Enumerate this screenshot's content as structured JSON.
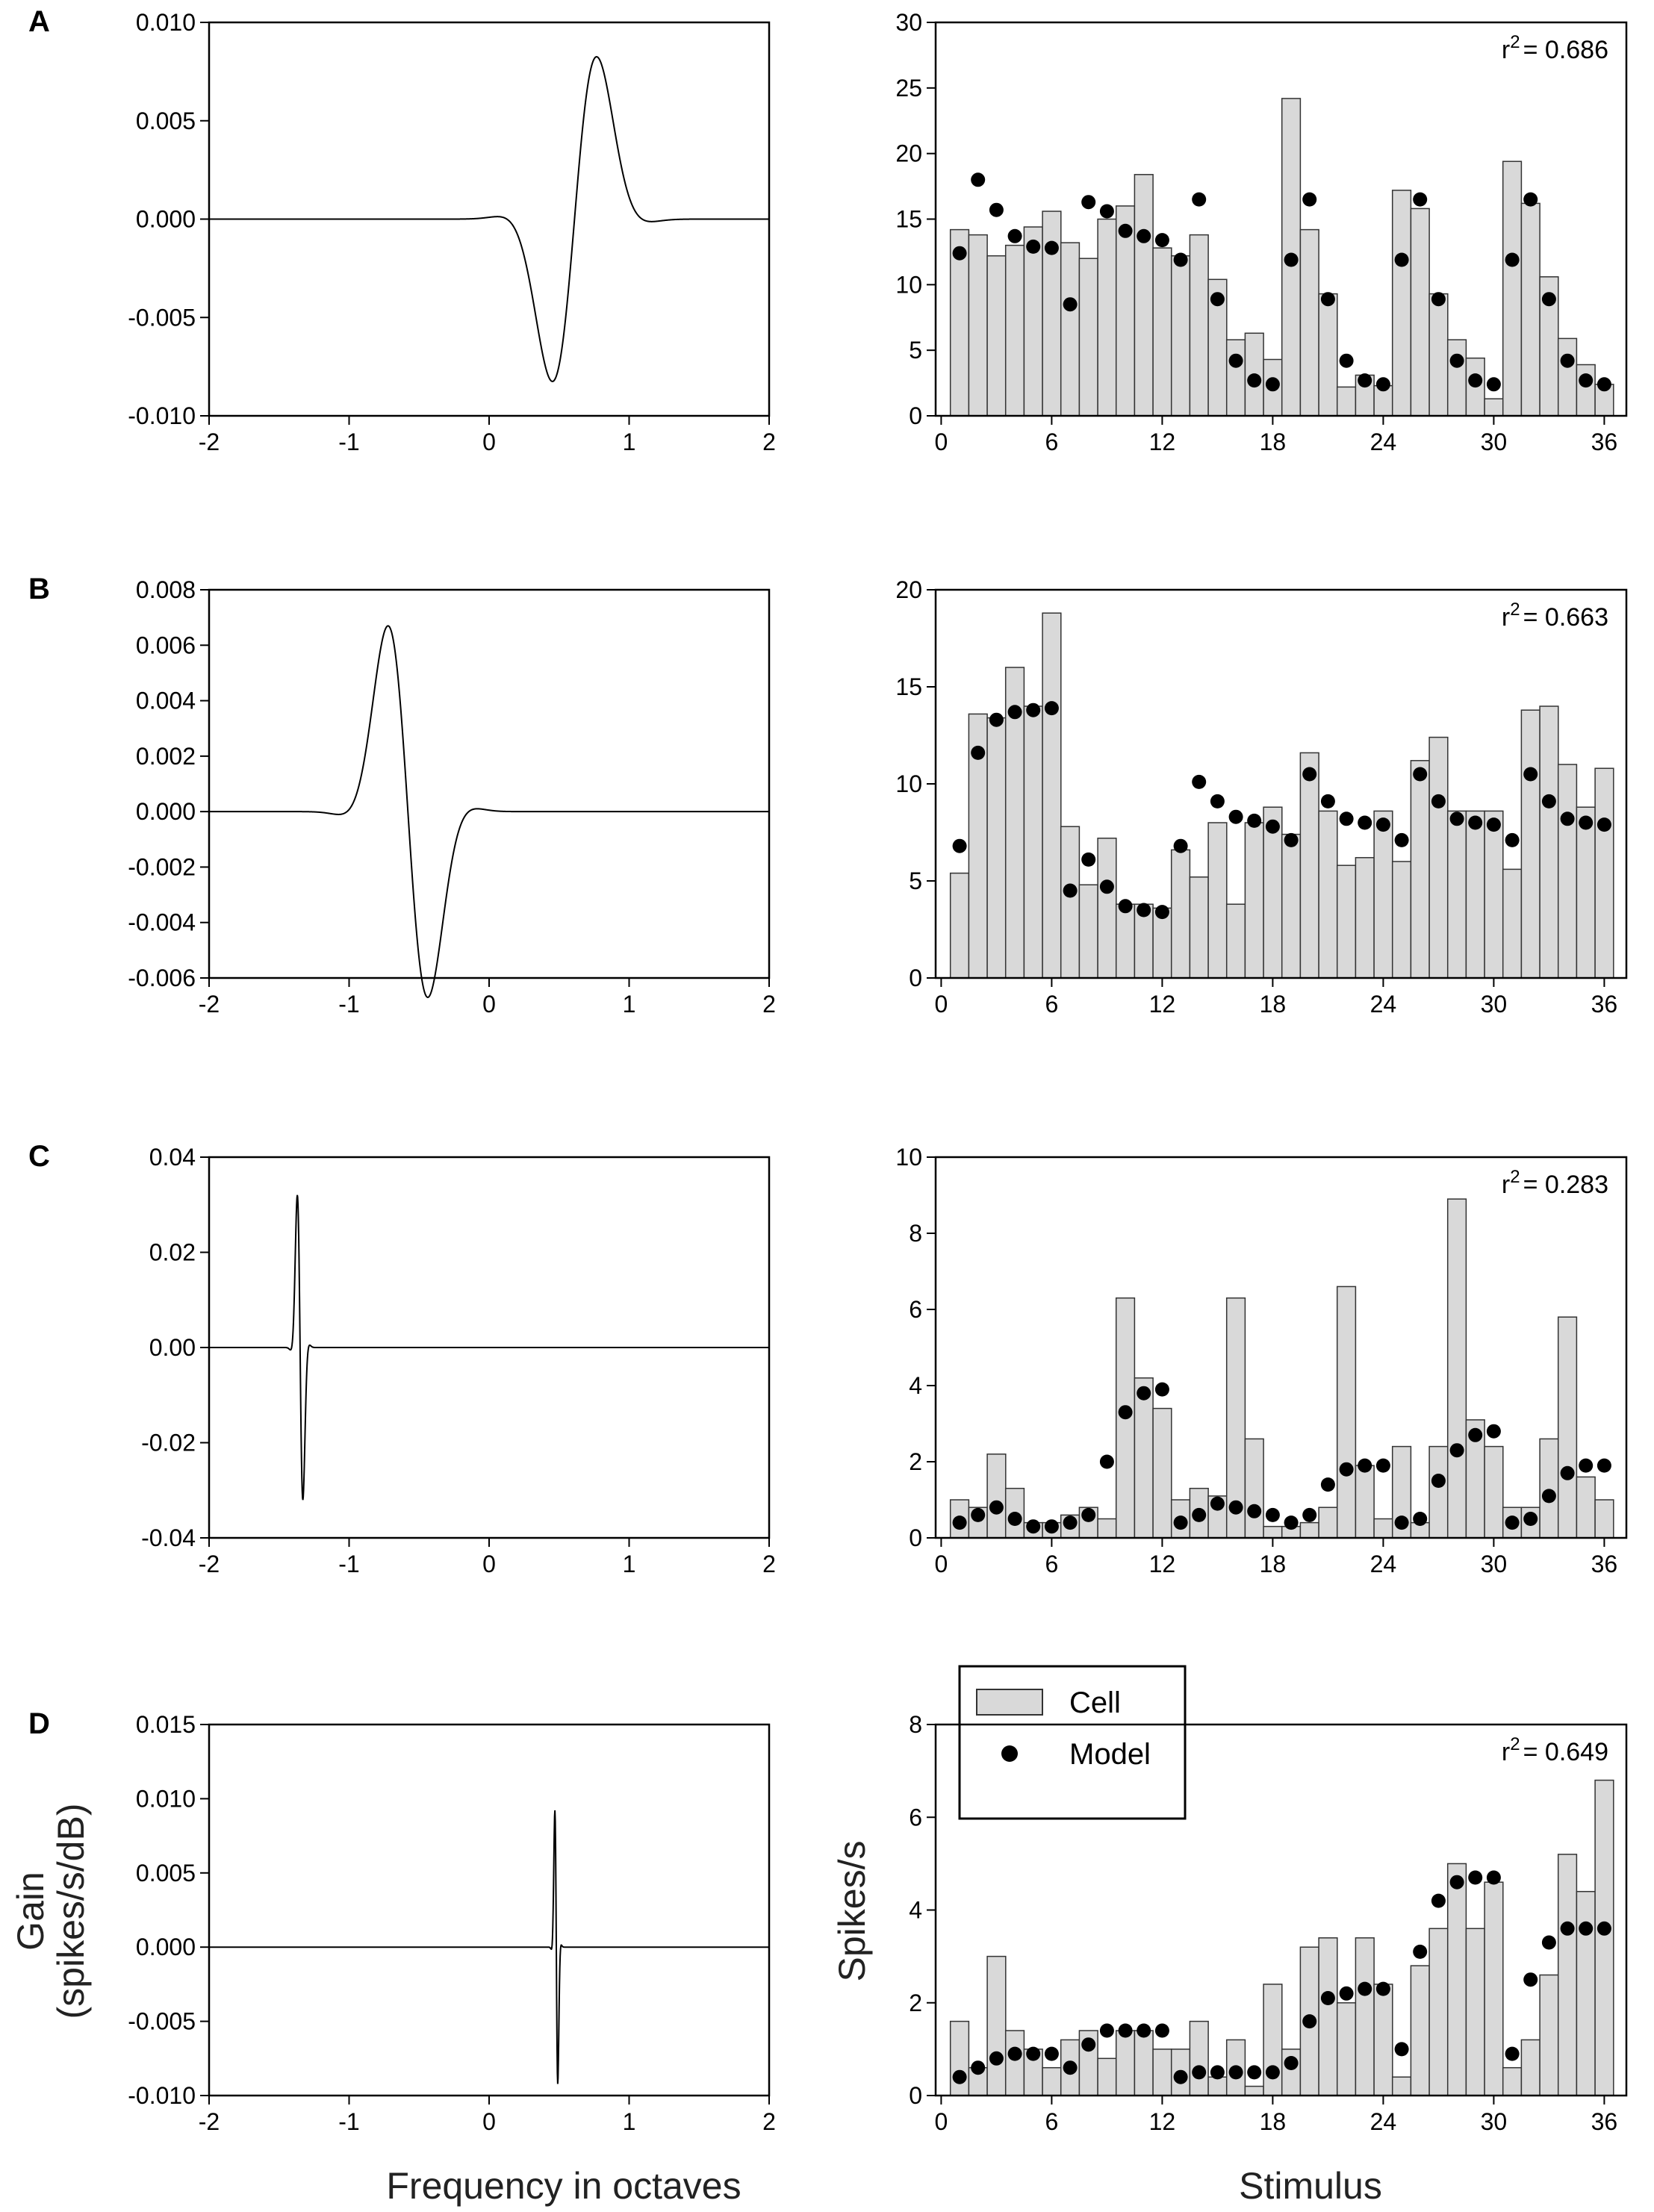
{
  "figure": {
    "x_label_left": "Frequency in octaves",
    "y_label_left_line1": "Gain",
    "y_label_left_line2": "(spikes/s/dB)",
    "x_label_right": "Stimulus",
    "y_label_right": "Spikes/s",
    "legend_cell": "Cell",
    "legend_model": "Model",
    "colors": {
      "bar_fill": "#d9d9d9",
      "bar_stroke": "#333333",
      "dot": "#000000",
      "line": "#000000"
    }
  },
  "chart_data": [
    {
      "panel": "A",
      "side": "left",
      "type": "line",
      "xlim": [
        -2,
        2
      ],
      "xticks": [
        "-2",
        "-1",
        "0",
        "1",
        "2"
      ],
      "ylim": [
        -0.01,
        0.01
      ],
      "yticks": [
        "-0.010",
        "-0.005",
        "0.000",
        "0.005",
        "0.010"
      ],
      "yticks_values": [
        -0.01,
        -0.005,
        0,
        0.005,
        0.01
      ],
      "curve": {
        "kind": "gabor",
        "center": 0.61,
        "width": 0.2,
        "amplitude": 0.0085,
        "sign": 1
      }
    },
    {
      "panel": "A",
      "side": "right",
      "type": "bar",
      "ylim": [
        0,
        30
      ],
      "yticks": [
        "0",
        "5",
        "10",
        "15",
        "20",
        "25",
        "30"
      ],
      "yticks_values": [
        0,
        5,
        10,
        15,
        20,
        25,
        30
      ],
      "xticks": [
        "0",
        "6",
        "12",
        "18",
        "24",
        "30",
        "36"
      ],
      "xticks_values": [
        0,
        6,
        12,
        18,
        24,
        30,
        36
      ],
      "r2_label": "r",
      "r2_sup": "2",
      "r2_value": "= 0.686",
      "series": [
        {
          "name": "Cell",
          "values": [
            14.2,
            13.8,
            12.2,
            13.0,
            14.4,
            15.6,
            13.2,
            12.0,
            15.0,
            16.0,
            18.4,
            12.8,
            12.2,
            13.8,
            10.4,
            5.8,
            6.3,
            4.3,
            24.2,
            14.2,
            9.3,
            2.2,
            3.1,
            2.3,
            17.2,
            15.8,
            9.3,
            5.8,
            4.4,
            1.3,
            19.4,
            16.2,
            10.6,
            5.9,
            3.9,
            2.4
          ]
        },
        {
          "name": "Model",
          "values": [
            12.4,
            18.0,
            15.7,
            13.7,
            12.9,
            12.8,
            8.5,
            16.3,
            15.6,
            14.1,
            13.7,
            13.4,
            11.9,
            16.5,
            8.9,
            4.2,
            2.7,
            2.4,
            11.9,
            16.5,
            8.9,
            4.2,
            2.7,
            2.4,
            11.9,
            16.5,
            8.9,
            4.2,
            2.7,
            2.4,
            11.9,
            16.5,
            8.9,
            4.2,
            2.7,
            2.4
          ]
        }
      ]
    },
    {
      "panel": "B",
      "side": "left",
      "type": "line",
      "xlim": [
        -2,
        2
      ],
      "xticks": [
        "-2",
        "-1",
        "0",
        "1",
        "2"
      ],
      "ylim": [
        -0.006,
        0.008
      ],
      "yticks": [
        "-0.006",
        "-0.004",
        "-0.002",
        "0.000",
        "0.002",
        "0.004",
        "0.006",
        "0.008"
      ],
      "yticks_values": [
        -0.006,
        -0.004,
        -0.002,
        0,
        0.002,
        0.004,
        0.006,
        0.008
      ],
      "curve": {
        "kind": "gabor",
        "center": -0.58,
        "width": 0.18,
        "amplitude": 0.0069,
        "sign": -1
      }
    },
    {
      "panel": "B",
      "side": "right",
      "type": "bar",
      "ylim": [
        0,
        20
      ],
      "yticks": [
        "0",
        "5",
        "10",
        "15",
        "20"
      ],
      "yticks_values": [
        0,
        5,
        10,
        15,
        20
      ],
      "xticks": [
        "0",
        "6",
        "12",
        "18",
        "24",
        "30",
        "36"
      ],
      "xticks_values": [
        0,
        6,
        12,
        18,
        24,
        30,
        36
      ],
      "r2_label": "r",
      "r2_sup": "2",
      "r2_value": "= 0.663",
      "series": [
        {
          "name": "Cell",
          "values": [
            5.4,
            13.6,
            13.4,
            16.0,
            14.0,
            18.8,
            7.8,
            4.8,
            7.2,
            3.8,
            3.8,
            3.6,
            6.6,
            5.2,
            8.0,
            3.8,
            8.0,
            8.8,
            7.4,
            11.6,
            8.6,
            5.8,
            6.2,
            8.6,
            6.0,
            11.2,
            12.4,
            8.6,
            8.6,
            8.6,
            5.6,
            13.8,
            14.0,
            11.0,
            8.8,
            10.8
          ]
        },
        {
          "name": "Model",
          "values": [
            6.8,
            11.6,
            13.3,
            13.7,
            13.8,
            13.9,
            4.5,
            6.1,
            4.7,
            3.7,
            3.5,
            3.4,
            6.8,
            10.1,
            9.1,
            8.3,
            8.1,
            7.8,
            7.1,
            10.5,
            9.1,
            8.2,
            8.0,
            7.9,
            7.1,
            10.5,
            9.1,
            8.2,
            8.0,
            7.9,
            7.1,
            10.5,
            9.1,
            8.2,
            8.0,
            7.9
          ]
        }
      ]
    },
    {
      "panel": "C",
      "side": "left",
      "type": "line",
      "xlim": [
        -2,
        2
      ],
      "xticks": [
        "-2",
        "-1",
        "0",
        "1",
        "2"
      ],
      "ylim": [
        -0.04,
        0.04
      ],
      "yticks": [
        "-0.04",
        "-0.02",
        "0.00",
        "0.02",
        "0.04"
      ],
      "yticks_values": [
        -0.04,
        -0.02,
        0,
        0.02,
        0.04
      ],
      "curve": {
        "kind": "gabor",
        "center": -1.35,
        "width": 0.025,
        "amplitude": 0.033,
        "sign": -1
      }
    },
    {
      "panel": "C",
      "side": "right",
      "type": "bar",
      "ylim": [
        0,
        10
      ],
      "yticks": [
        "0",
        "2",
        "4",
        "6",
        "8",
        "10"
      ],
      "yticks_values": [
        0,
        2,
        4,
        6,
        8,
        10
      ],
      "xticks": [
        "0",
        "6",
        "12",
        "18",
        "24",
        "30",
        "36"
      ],
      "xticks_values": [
        0,
        6,
        12,
        18,
        24,
        30,
        36
      ],
      "r2_label": "r",
      "r2_sup": "2",
      "r2_value": "= 0.283",
      "series": [
        {
          "name": "Cell",
          "values": [
            1.0,
            0.8,
            2.2,
            1.3,
            0.4,
            0.4,
            0.6,
            0.8,
            0.5,
            6.3,
            4.2,
            3.4,
            1.0,
            1.3,
            1.1,
            6.3,
            2.6,
            0.3,
            0.3,
            0.4,
            0.8,
            6.6,
            1.9,
            0.5,
            2.4,
            0.4,
            2.4,
            8.9,
            3.1,
            2.4,
            0.8,
            0.8,
            2.6,
            5.8,
            1.6,
            1.0
          ]
        },
        {
          "name": "Model",
          "values": [
            0.4,
            0.6,
            0.8,
            0.5,
            0.3,
            0.3,
            0.4,
            0.6,
            2.0,
            3.3,
            3.8,
            3.9,
            0.4,
            0.6,
            0.9,
            0.8,
            0.7,
            0.6,
            0.4,
            0.6,
            1.4,
            1.8,
            1.9,
            1.9,
            0.4,
            0.5,
            1.5,
            2.3,
            2.7,
            2.8,
            0.4,
            0.5,
            1.1,
            1.7,
            1.9,
            1.9
          ]
        }
      ]
    },
    {
      "panel": "D",
      "side": "left",
      "type": "line",
      "xlim": [
        -2,
        2
      ],
      "xticks": [
        "-2",
        "-1",
        "0",
        "1",
        "2"
      ],
      "ylim": [
        -0.01,
        0.015
      ],
      "yticks": [
        "-0.010",
        "-0.005",
        "0.000",
        "0.005",
        "0.010",
        "0.015"
      ],
      "yticks_values": [
        -0.01,
        -0.005,
        0,
        0.005,
        0.01,
        0.015
      ],
      "curve": {
        "kind": "gabor",
        "center": 0.48,
        "width": 0.013,
        "amplitude": 0.0095,
        "sign": -1
      }
    },
    {
      "panel": "D",
      "side": "right",
      "type": "bar",
      "ylim": [
        0,
        8
      ],
      "yticks": [
        "0",
        "2",
        "4",
        "6",
        "8"
      ],
      "yticks_values": [
        0,
        2,
        4,
        6,
        8
      ],
      "xticks": [
        "0",
        "6",
        "12",
        "18",
        "24",
        "30",
        "36"
      ],
      "xticks_values": [
        0,
        6,
        12,
        18,
        24,
        30,
        36
      ],
      "r2_label": "r",
      "r2_sup": "2",
      "r2_value": "= 0.649",
      "legend": true,
      "series": [
        {
          "name": "Cell",
          "values": [
            1.6,
            0.6,
            3.0,
            1.4,
            1.0,
            0.6,
            1.2,
            1.4,
            0.8,
            1.4,
            1.4,
            1.0,
            1.0,
            1.6,
            0.4,
            1.2,
            0.2,
            2.4,
            1.0,
            3.2,
            3.4,
            2.0,
            3.4,
            2.4,
            0.4,
            2.8,
            3.6,
            5.0,
            3.6,
            4.6,
            0.6,
            1.2,
            2.6,
            5.2,
            4.4,
            6.8
          ]
        },
        {
          "name": "Model",
          "values": [
            0.4,
            0.6,
            0.8,
            0.9,
            0.9,
            0.9,
            0.6,
            1.1,
            1.4,
            1.4,
            1.4,
            1.4,
            0.4,
            0.5,
            0.5,
            0.5,
            0.5,
            0.5,
            0.7,
            1.6,
            2.1,
            2.2,
            2.3,
            2.3,
            1.0,
            3.1,
            4.2,
            4.6,
            4.7,
            4.7,
            0.9,
            2.5,
            3.3,
            3.6,
            3.6,
            3.6
          ]
        }
      ]
    }
  ]
}
